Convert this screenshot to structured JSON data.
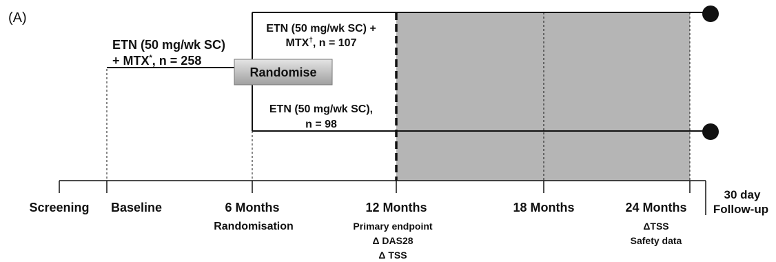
{
  "panel_label": "(A)",
  "arm_initial": {
    "line1": "ETN (50 mg/wk SC)",
    "line2_prefix": "+ MTX",
    "line2_sup": "*",
    "line2_suffix": ", n = 258"
  },
  "randomise_label": "Randomise",
  "arm_upper": {
    "line1": "ETN (50 mg/wk SC) +",
    "line2_prefix": "MTX",
    "line2_sup": "†",
    "line2_suffix": ", n = 107"
  },
  "arm_lower": {
    "line1": "ETN (50 mg/wk SC),",
    "line2": "n = 98"
  },
  "timepoints": [
    {
      "label": "Screening",
      "notes": []
    },
    {
      "label": "Baseline",
      "notes": []
    },
    {
      "label": "6 Months",
      "notes": [
        "Randomisation"
      ]
    },
    {
      "label": "12 Months",
      "notes": [
        "Primary endpoint",
        "Δ DAS28",
        "Δ TSS"
      ]
    },
    {
      "label": "18 Months",
      "notes": []
    },
    {
      "label": "24 Months",
      "notes": [
        "ΔTSS",
        "Safety data"
      ]
    }
  ],
  "followup": {
    "line1": "30 day",
    "line2": "Follow-up"
  },
  "colors": {
    "shaded_region": "#b5b5b5",
    "line": "#111111",
    "randomise_box_top": "#d8d8d8",
    "randomise_box_bottom": "#a8a8a8"
  }
}
